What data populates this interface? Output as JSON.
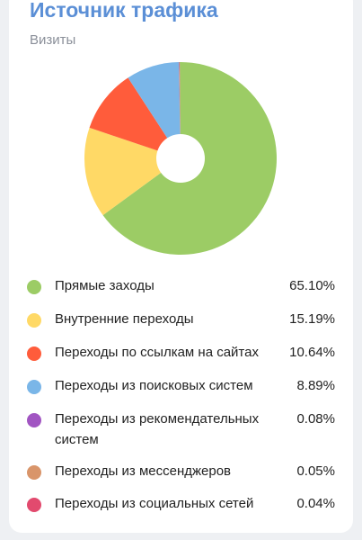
{
  "header": {
    "title": "Источник трафика",
    "subtitle": "Визиты"
  },
  "chart_data": {
    "type": "pie",
    "donut": true,
    "title": "Источник трафика",
    "subtitle": "Визиты",
    "categories": [
      "Прямые заходы",
      "Внутренние переходы",
      "Переходы по ссылкам на сайтах",
      "Переходы из поисковых систем",
      "Переходы из рекомендательных систем",
      "Переходы из мессенджеров",
      "Переходы из социальных сетей"
    ],
    "values": [
      65.1,
      15.19,
      10.64,
      8.89,
      0.08,
      0.05,
      0.04
    ],
    "value_labels": [
      "65.10%",
      "15.19%",
      "10.64%",
      "8.89%",
      "0.08%",
      "0.05%",
      "0.04%"
    ],
    "colors": [
      "#9ccc65",
      "#ffd966",
      "#ff5c3b",
      "#7ab6e8",
      "#a155c2",
      "#d9956a",
      "#e24a6e"
    ],
    "legend": "bottom"
  }
}
